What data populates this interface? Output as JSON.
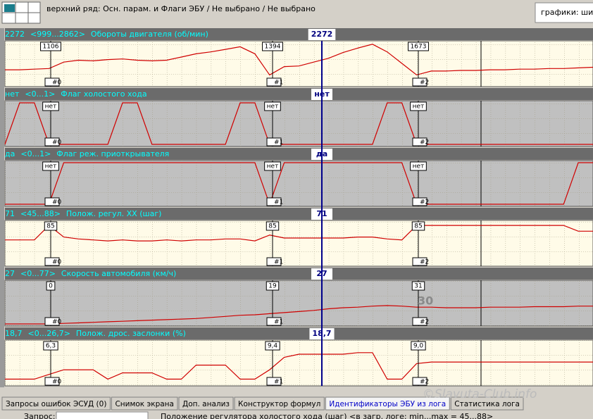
{
  "toolbar": {
    "title": "верхний ряд: Осн. парам. и Флаги ЭБУ / Не выбрано / Не выбрано",
    "graphs_label": "графики:  шир"
  },
  "markers": [
    "#0",
    "#1",
    "#2"
  ],
  "panels": [
    {
      "value": "2272",
      "range": "<999...2862>",
      "name": "Обороты двигателя (об/мин)",
      "cursor": "2272",
      "marker_labels": [
        "1106",
        "1394",
        "1673"
      ],
      "background": "#fffbe8",
      "ylim": [
        999,
        2862
      ],
      "values": [
        1658,
        1658,
        1687,
        1716,
        2002,
        2088,
        2059,
        2117,
        2145,
        2088,
        2059,
        2088,
        2231,
        2375,
        2461,
        2575,
        2690,
        2375,
        1429,
        1801,
        1830,
        2002,
        2174,
        2432,
        2633,
        2805,
        2461,
        1945,
        1429,
        1601,
        1601,
        1630,
        1630,
        1658,
        1658,
        1687,
        1687,
        1716,
        1716,
        1744,
        1772
      ]
    },
    {
      "value": "нет",
      "range": "<0...1>",
      "name": "Флаг холостого хода",
      "cursor": "нет",
      "marker_labels": [
        "нет",
        "нет",
        "нет"
      ],
      "background": "#c0c0c0",
      "ylim": [
        0,
        1
      ],
      "values": [
        0,
        1,
        1,
        0,
        0,
        0,
        0,
        0,
        1,
        1,
        0,
        0,
        0,
        0,
        0,
        0,
        1,
        1,
        0,
        0,
        0,
        0,
        0,
        0,
        0,
        0,
        1,
        1,
        0,
        0,
        0,
        0,
        0,
        0,
        0,
        0,
        0,
        0,
        0,
        0,
        0
      ]
    },
    {
      "value": "да",
      "range": "<0...1>",
      "name": "Флаг реж. приоткрывателя",
      "cursor": "да",
      "marker_labels": [
        "нет",
        "нет",
        "нет"
      ],
      "background": "#c0c0c0",
      "ylim": [
        0,
        1
      ],
      "values": [
        0,
        0,
        0,
        0,
        1,
        1,
        1,
        1,
        1,
        1,
        1,
        1,
        1,
        1,
        1,
        1,
        1,
        1,
        0,
        1,
        1,
        1,
        1,
        1,
        1,
        1,
        1,
        1,
        0,
        0,
        0,
        0,
        0,
        0,
        0,
        0,
        0,
        0,
        0,
        1,
        1
      ]
    },
    {
      "value": "71",
      "range": "<45...88>",
      "name": "Полож. регул. ХХ (шаг)",
      "cursor": "71",
      "marker_labels": [
        "85",
        "85",
        "85"
      ],
      "background": "#fffbe8",
      "ylim": [
        45,
        88
      ],
      "values": [
        70,
        70,
        70,
        85,
        73,
        71,
        70,
        69,
        70,
        69,
        69,
        70,
        69,
        70,
        70,
        71,
        71,
        69,
        75,
        72,
        72,
        72,
        72,
        72,
        73,
        73,
        71,
        70,
        85,
        85,
        85,
        85,
        85,
        85,
        85,
        85,
        85,
        85,
        85,
        79,
        79
      ]
    },
    {
      "value": "27",
      "range": "<0...77>",
      "name": "Скорость автомобиля (км/ч)",
      "cursor": "27",
      "marker_labels": [
        "0",
        "19",
        "31"
      ],
      "background": "#c0c0c0",
      "ylim": [
        0,
        77
      ],
      "values": [
        0,
        0,
        0,
        0,
        1,
        2,
        3,
        4,
        5,
        6,
        7,
        8,
        9,
        10,
        12,
        14,
        16,
        17,
        19,
        21,
        23,
        25,
        28,
        30,
        31,
        33,
        34,
        33,
        31,
        31,
        30,
        30,
        30,
        31,
        31,
        31,
        32,
        32,
        32,
        33,
        33
      ]
    },
    {
      "value": "18,7",
      "range": "<0...26,7>",
      "name": "Полож. дрос. заслонки (%)",
      "cursor": "18,7",
      "marker_labels": [
        "6,3",
        "9,4",
        "9,0"
      ],
      "background": "#fffbe8",
      "ylim": [
        0,
        26.7
      ],
      "values": [
        3,
        3,
        3,
        6,
        9,
        9,
        9,
        3,
        7,
        7,
        7,
        3,
        3,
        12,
        12,
        12,
        3,
        3,
        9,
        17,
        19,
        19,
        19,
        19,
        20,
        20,
        3,
        3,
        13,
        14,
        14,
        14,
        14,
        14,
        14,
        14,
        14,
        14,
        14,
        14,
        14
      ]
    }
  ],
  "overlay_text": "30",
  "tabs": [
    "Запросы ошибок ЭСУД (0)",
    "Снимок экрана",
    "Доп. анализ",
    "Конструктор формул",
    "Идентификаторы ЭБУ из лога",
    "Статистика лога"
  ],
  "status": {
    "label": "Запрос:",
    "text": "Положение регулятора холостого хода (шаг) <в загр. логе: min...max = 45...88>"
  },
  "watermark": "©Slavuta-Club.info"
}
